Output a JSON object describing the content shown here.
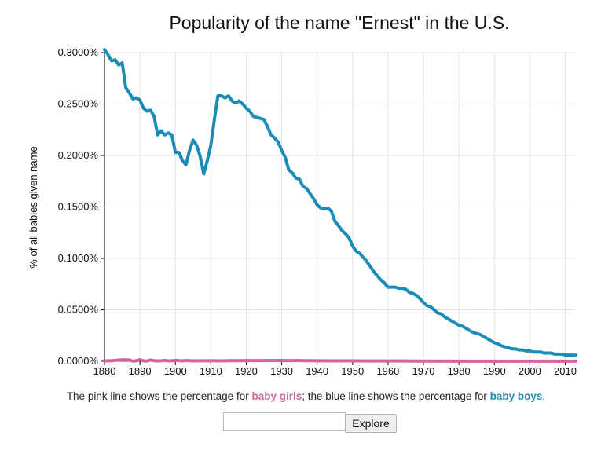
{
  "chart_data": {
    "type": "line",
    "title": "Popularity of the name \"Ernest\" in the U.S.",
    "ylabel": "% of all babies given name",
    "xlabel": "",
    "xlim": [
      1880,
      2013
    ],
    "ylim": [
      0,
      0.3
    ],
    "x_ticks": [
      1880,
      1890,
      1900,
      1910,
      1920,
      1930,
      1940,
      1950,
      1960,
      1970,
      1980,
      1990,
      2000,
      2010
    ],
    "y_ticks": [
      0,
      0.05,
      0.1,
      0.15,
      0.2,
      0.25,
      0.3
    ],
    "y_tick_labels": [
      "0.0000%",
      "0.0500%",
      "0.1000%",
      "0.1500%",
      "0.2000%",
      "0.2500%",
      "0.3000%"
    ],
    "grid": true,
    "series": [
      {
        "name": "baby boys",
        "color": "#1a8cb8",
        "points": [
          [
            1880,
            0.303
          ],
          [
            1881,
            0.298
          ],
          [
            1882,
            0.292
          ],
          [
            1883,
            0.293
          ],
          [
            1884,
            0.288
          ],
          [
            1885,
            0.29
          ],
          [
            1886,
            0.266
          ],
          [
            1887,
            0.261
          ],
          [
            1888,
            0.255
          ],
          [
            1889,
            0.256
          ],
          [
            1890,
            0.254
          ],
          [
            1891,
            0.246
          ],
          [
            1892,
            0.243
          ],
          [
            1893,
            0.244
          ],
          [
            1894,
            0.238
          ],
          [
            1895,
            0.22
          ],
          [
            1896,
            0.224
          ],
          [
            1897,
            0.22
          ],
          [
            1898,
            0.222
          ],
          [
            1899,
            0.22
          ],
          [
            1900,
            0.203
          ],
          [
            1901,
            0.203
          ],
          [
            1902,
            0.195
          ],
          [
            1903,
            0.191
          ],
          [
            1904,
            0.205
          ],
          [
            1905,
            0.215
          ],
          [
            1906,
            0.21
          ],
          [
            1907,
            0.199
          ],
          [
            1908,
            0.182
          ],
          [
            1909,
            0.195
          ],
          [
            1910,
            0.21
          ],
          [
            1911,
            0.235
          ],
          [
            1912,
            0.258
          ],
          [
            1913,
            0.258
          ],
          [
            1914,
            0.256
          ],
          [
            1915,
            0.258
          ],
          [
            1916,
            0.253
          ],
          [
            1917,
            0.251
          ],
          [
            1918,
            0.253
          ],
          [
            1919,
            0.25
          ],
          [
            1920,
            0.246
          ],
          [
            1921,
            0.243
          ],
          [
            1922,
            0.238
          ],
          [
            1923,
            0.237
          ],
          [
            1924,
            0.236
          ],
          [
            1925,
            0.235
          ],
          [
            1926,
            0.228
          ],
          [
            1927,
            0.22
          ],
          [
            1928,
            0.217
          ],
          [
            1929,
            0.213
          ],
          [
            1930,
            0.205
          ],
          [
            1931,
            0.198
          ],
          [
            1932,
            0.186
          ],
          [
            1933,
            0.183
          ],
          [
            1934,
            0.178
          ],
          [
            1935,
            0.177
          ],
          [
            1936,
            0.17
          ],
          [
            1937,
            0.168
          ],
          [
            1938,
            0.163
          ],
          [
            1939,
            0.158
          ],
          [
            1940,
            0.152
          ],
          [
            1941,
            0.149
          ],
          [
            1942,
            0.148
          ],
          [
            1943,
            0.149
          ],
          [
            1944,
            0.146
          ],
          [
            1945,
            0.136
          ],
          [
            1946,
            0.132
          ],
          [
            1947,
            0.127
          ],
          [
            1948,
            0.124
          ],
          [
            1949,
            0.12
          ],
          [
            1950,
            0.112
          ],
          [
            1951,
            0.107
          ],
          [
            1952,
            0.105
          ],
          [
            1953,
            0.101
          ],
          [
            1954,
            0.097
          ],
          [
            1955,
            0.092
          ],
          [
            1956,
            0.087
          ],
          [
            1957,
            0.083
          ],
          [
            1958,
            0.079
          ],
          [
            1959,
            0.076
          ],
          [
            1960,
            0.072
          ],
          [
            1961,
            0.072
          ],
          [
            1962,
            0.072
          ],
          [
            1963,
            0.071
          ],
          [
            1964,
            0.071
          ],
          [
            1965,
            0.07
          ],
          [
            1966,
            0.067
          ],
          [
            1967,
            0.066
          ],
          [
            1968,
            0.064
          ],
          [
            1969,
            0.061
          ],
          [
            1970,
            0.057
          ],
          [
            1971,
            0.054
          ],
          [
            1972,
            0.053
          ],
          [
            1973,
            0.05
          ],
          [
            1974,
            0.047
          ],
          [
            1975,
            0.046
          ],
          [
            1976,
            0.043
          ],
          [
            1977,
            0.041
          ],
          [
            1978,
            0.039
          ],
          [
            1979,
            0.037
          ],
          [
            1980,
            0.035
          ],
          [
            1981,
            0.034
          ],
          [
            1982,
            0.032
          ],
          [
            1983,
            0.03
          ],
          [
            1984,
            0.028
          ],
          [
            1985,
            0.027
          ],
          [
            1986,
            0.026
          ],
          [
            1987,
            0.024
          ],
          [
            1988,
            0.022
          ],
          [
            1989,
            0.02
          ],
          [
            1990,
            0.018
          ],
          [
            1991,
            0.017
          ],
          [
            1992,
            0.015
          ],
          [
            1993,
            0.014
          ],
          [
            1994,
            0.013
          ],
          [
            1995,
            0.012
          ],
          [
            1996,
            0.012
          ],
          [
            1997,
            0.011
          ],
          [
            1998,
            0.011
          ],
          [
            1999,
            0.01
          ],
          [
            2000,
            0.01
          ],
          [
            2001,
            0.009
          ],
          [
            2002,
            0.009
          ],
          [
            2003,
            0.009
          ],
          [
            2004,
            0.008
          ],
          [
            2005,
            0.008
          ],
          [
            2006,
            0.008
          ],
          [
            2007,
            0.007
          ],
          [
            2008,
            0.007
          ],
          [
            2009,
            0.007
          ],
          [
            2010,
            0.006
          ],
          [
            2011,
            0.006
          ],
          [
            2012,
            0.006
          ],
          [
            2013,
            0.006
          ]
        ]
      },
      {
        "name": "baby girls",
        "color": "#d2649e",
        "points": [
          [
            1880,
            0.0005
          ],
          [
            1882,
            0.0005
          ],
          [
            1884,
            0.0012
          ],
          [
            1886,
            0.0014
          ],
          [
            1887,
            0.0012
          ],
          [
            1888,
            0.0002
          ],
          [
            1889,
            0.0004
          ],
          [
            1890,
            0.0016
          ],
          [
            1891,
            0.0004
          ],
          [
            1892,
            0.0002
          ],
          [
            1893,
            0.0012
          ],
          [
            1894,
            0.0006
          ],
          [
            1895,
            0.0004
          ],
          [
            1896,
            0.0005
          ],
          [
            1897,
            0.0008
          ],
          [
            1898,
            0.0004
          ],
          [
            1899,
            0.0005
          ],
          [
            1900,
            0.0009
          ],
          [
            1901,
            0.0007
          ],
          [
            1902,
            0.0004
          ],
          [
            1903,
            0.0008
          ],
          [
            1904,
            0.0006
          ],
          [
            1905,
            0.0004
          ],
          [
            1906,
            0.0005
          ],
          [
            1908,
            0.0005
          ],
          [
            1910,
            0.0006
          ],
          [
            1912,
            0.0004
          ],
          [
            1914,
            0.0005
          ],
          [
            1916,
            0.0006
          ],
          [
            1918,
            0.0006
          ],
          [
            1920,
            0.0007
          ],
          [
            1922,
            0.0007
          ],
          [
            1924,
            0.0007
          ],
          [
            1926,
            0.0008
          ],
          [
            1928,
            0.0008
          ],
          [
            1930,
            0.0008
          ],
          [
            1932,
            0.0007
          ],
          [
            1934,
            0.0007
          ],
          [
            1936,
            0.0006
          ],
          [
            1940,
            0.0005
          ],
          [
            1945,
            0.0004
          ],
          [
            1950,
            0.0004
          ],
          [
            1955,
            0.0003
          ],
          [
            1960,
            0.0003
          ],
          [
            1970,
            0.0002
          ],
          [
            1980,
            0.0001
          ],
          [
            1990,
            0.0001
          ],
          [
            2000,
            0.0001
          ],
          [
            2013,
            0.0001
          ]
        ]
      }
    ]
  },
  "caption": {
    "prefix": "The pink line shows the percentage for ",
    "girls_label": "baby girls",
    "middle": "; the blue line shows the percentage for ",
    "boys_label": "baby boys",
    "suffix": "."
  },
  "explore": {
    "input_value": "",
    "button_label": "Explore"
  },
  "colors": {
    "girls": "#d2649e",
    "boys": "#1a8cb8",
    "grid": "#e2e2e2",
    "axis": "#000000"
  }
}
